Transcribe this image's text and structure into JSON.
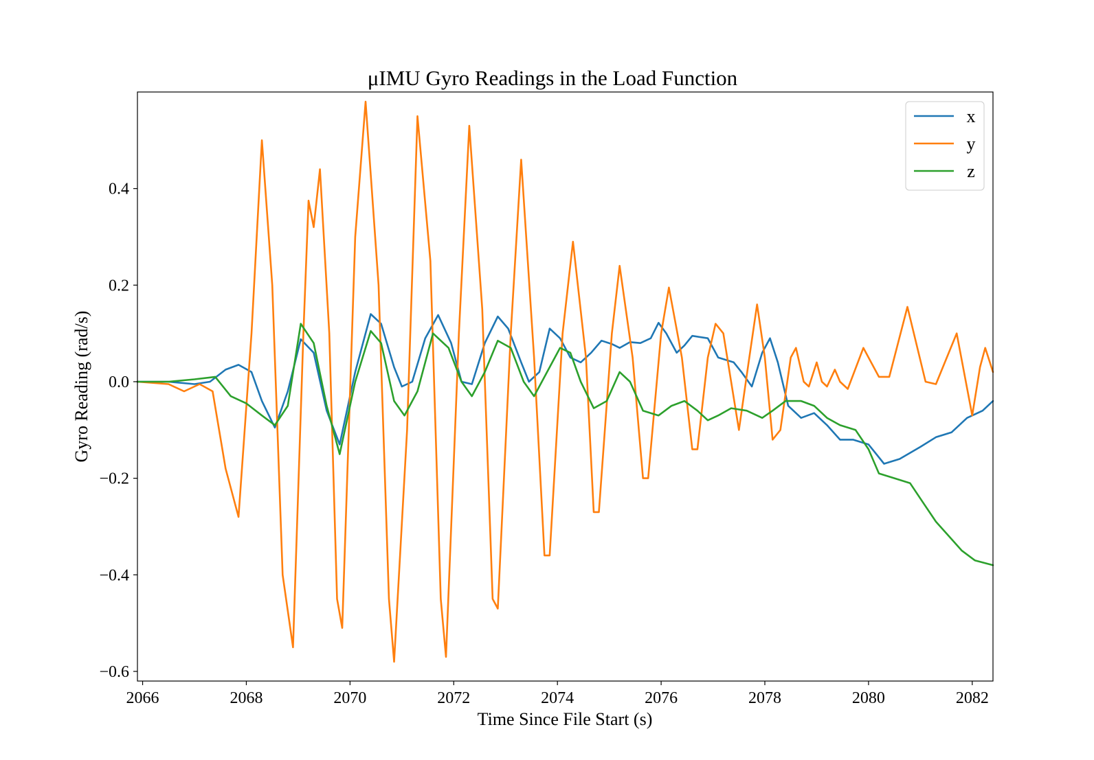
{
  "chart_data": {
    "type": "line",
    "title": "μIMU Gyro Readings in the Load Function",
    "xlabel": "Time Since File Start (s)",
    "ylabel": "Gyro Reading (rad/s)",
    "xlim": [
      2065.9,
      2082.4
    ],
    "ylim": [
      -0.62,
      0.6
    ],
    "xticks": [
      2066,
      2068,
      2070,
      2072,
      2074,
      2076,
      2078,
      2080,
      2082
    ],
    "xtick_labels": [
      "2066",
      "2068",
      "2070",
      "2072",
      "2074",
      "2076",
      "2078",
      "2080",
      "2082"
    ],
    "yticks": [
      -0.6,
      -0.4,
      -0.2,
      0.0,
      0.2,
      0.4
    ],
    "ytick_labels": [
      "−0.6",
      "−0.4",
      "−0.2",
      "0.0",
      "0.2",
      "0.4"
    ],
    "legend_position": "top-right",
    "grid": false,
    "series": [
      {
        "name": "x",
        "color": "#1f77b4",
        "points": [
          [
            2065.9,
            0.0
          ],
          [
            2066.5,
            0.0
          ],
          [
            2067.0,
            -0.005
          ],
          [
            2067.3,
            0.0
          ],
          [
            2067.6,
            0.025
          ],
          [
            2067.85,
            0.035
          ],
          [
            2068.1,
            0.02
          ],
          [
            2068.3,
            -0.04
          ],
          [
            2068.55,
            -0.095
          ],
          [
            2068.8,
            -0.02
          ],
          [
            2069.05,
            0.088
          ],
          [
            2069.3,
            0.06
          ],
          [
            2069.55,
            -0.06
          ],
          [
            2069.8,
            -0.13
          ],
          [
            2070.1,
            0.02
          ],
          [
            2070.4,
            0.14
          ],
          [
            2070.6,
            0.12
          ],
          [
            2070.85,
            0.03
          ],
          [
            2071.0,
            -0.01
          ],
          [
            2071.2,
            0.0
          ],
          [
            2071.45,
            0.09
          ],
          [
            2071.7,
            0.138
          ],
          [
            2071.95,
            0.08
          ],
          [
            2072.15,
            0.0
          ],
          [
            2072.35,
            -0.005
          ],
          [
            2072.6,
            0.08
          ],
          [
            2072.85,
            0.135
          ],
          [
            2073.05,
            0.11
          ],
          [
            2073.3,
            0.04
          ],
          [
            2073.45,
            0.0
          ],
          [
            2073.65,
            0.02
          ],
          [
            2073.85,
            0.11
          ],
          [
            2074.05,
            0.09
          ],
          [
            2074.25,
            0.05
          ],
          [
            2074.45,
            0.04
          ],
          [
            2074.65,
            0.06
          ],
          [
            2074.85,
            0.085
          ],
          [
            2075.05,
            0.078
          ],
          [
            2075.2,
            0.07
          ],
          [
            2075.4,
            0.082
          ],
          [
            2075.6,
            0.08
          ],
          [
            2075.8,
            0.09
          ],
          [
            2075.95,
            0.122
          ],
          [
            2076.1,
            0.1
          ],
          [
            2076.3,
            0.06
          ],
          [
            2076.45,
            0.075
          ],
          [
            2076.6,
            0.095
          ],
          [
            2076.9,
            0.09
          ],
          [
            2077.1,
            0.05
          ],
          [
            2077.4,
            0.04
          ],
          [
            2077.55,
            0.02
          ],
          [
            2077.75,
            -0.01
          ],
          [
            2077.95,
            0.06
          ],
          [
            2078.1,
            0.09
          ],
          [
            2078.25,
            0.04
          ],
          [
            2078.45,
            -0.05
          ],
          [
            2078.7,
            -0.075
          ],
          [
            2078.95,
            -0.065
          ],
          [
            2079.2,
            -0.09
          ],
          [
            2079.45,
            -0.12
          ],
          [
            2079.7,
            -0.12
          ],
          [
            2080.0,
            -0.13
          ],
          [
            2080.3,
            -0.17
          ],
          [
            2080.6,
            -0.16
          ],
          [
            2081.0,
            -0.135
          ],
          [
            2081.3,
            -0.115
          ],
          [
            2081.6,
            -0.105
          ],
          [
            2081.9,
            -0.075
          ],
          [
            2082.2,
            -0.06
          ],
          [
            2082.4,
            -0.04
          ]
        ]
      },
      {
        "name": "y",
        "color": "#ff7f0e",
        "points": [
          [
            2065.9,
            0.0
          ],
          [
            2066.5,
            -0.005
          ],
          [
            2066.8,
            -0.02
          ],
          [
            2067.1,
            -0.005
          ],
          [
            2067.35,
            -0.02
          ],
          [
            2067.6,
            -0.18
          ],
          [
            2067.85,
            -0.28
          ],
          [
            2068.1,
            0.1
          ],
          [
            2068.3,
            0.5
          ],
          [
            2068.5,
            0.2
          ],
          [
            2068.7,
            -0.4
          ],
          [
            2068.9,
            -0.55
          ],
          [
            2069.1,
            0.1
          ],
          [
            2069.2,
            0.375
          ],
          [
            2069.3,
            0.32
          ],
          [
            2069.42,
            0.44
          ],
          [
            2069.6,
            0.1
          ],
          [
            2069.75,
            -0.45
          ],
          [
            2069.85,
            -0.51
          ],
          [
            2070.1,
            0.3
          ],
          [
            2070.3,
            0.58
          ],
          [
            2070.55,
            0.2
          ],
          [
            2070.75,
            -0.45
          ],
          [
            2070.85,
            -0.58
          ],
          [
            2071.1,
            -0.1
          ],
          [
            2071.3,
            0.55
          ],
          [
            2071.55,
            0.25
          ],
          [
            2071.75,
            -0.45
          ],
          [
            2071.85,
            -0.57
          ],
          [
            2072.1,
            0.1
          ],
          [
            2072.3,
            0.53
          ],
          [
            2072.55,
            0.15
          ],
          [
            2072.75,
            -0.45
          ],
          [
            2072.85,
            -0.47
          ],
          [
            2073.1,
            0.1
          ],
          [
            2073.3,
            0.46
          ],
          [
            2073.55,
            0.05
          ],
          [
            2073.75,
            -0.36
          ],
          [
            2073.85,
            -0.36
          ],
          [
            2074.1,
            0.1
          ],
          [
            2074.3,
            0.29
          ],
          [
            2074.55,
            0.05
          ],
          [
            2074.7,
            -0.27
          ],
          [
            2074.8,
            -0.27
          ],
          [
            2075.05,
            0.1
          ],
          [
            2075.2,
            0.24
          ],
          [
            2075.45,
            0.05
          ],
          [
            2075.65,
            -0.2
          ],
          [
            2075.75,
            -0.2
          ],
          [
            2076.0,
            0.1
          ],
          [
            2076.15,
            0.195
          ],
          [
            2076.4,
            0.05
          ],
          [
            2076.6,
            -0.14
          ],
          [
            2076.7,
            -0.14
          ],
          [
            2076.9,
            0.05
          ],
          [
            2077.05,
            0.12
          ],
          [
            2077.2,
            0.1
          ],
          [
            2077.5,
            -0.1
          ],
          [
            2077.7,
            0.05
          ],
          [
            2077.85,
            0.16
          ],
          [
            2078.0,
            0.05
          ],
          [
            2078.15,
            -0.12
          ],
          [
            2078.3,
            -0.1
          ],
          [
            2078.5,
            0.05
          ],
          [
            2078.6,
            0.07
          ],
          [
            2078.75,
            0.0
          ],
          [
            2078.85,
            -0.01
          ],
          [
            2079.0,
            0.04
          ],
          [
            2079.1,
            0.0
          ],
          [
            2079.2,
            -0.01
          ],
          [
            2079.35,
            0.025
          ],
          [
            2079.45,
            0.0
          ],
          [
            2079.6,
            -0.015
          ],
          [
            2079.9,
            0.07
          ],
          [
            2080.2,
            0.01
          ],
          [
            2080.4,
            0.01
          ],
          [
            2080.75,
            0.155
          ],
          [
            2081.1,
            0.0
          ],
          [
            2081.3,
            -0.005
          ],
          [
            2081.7,
            0.1
          ],
          [
            2082.0,
            -0.07
          ],
          [
            2082.15,
            0.03
          ],
          [
            2082.25,
            0.07
          ],
          [
            2082.4,
            0.02
          ]
        ]
      },
      {
        "name": "z",
        "color": "#2ca02c",
        "points": [
          [
            2065.9,
            0.0
          ],
          [
            2066.5,
            0.0
          ],
          [
            2067.0,
            0.005
          ],
          [
            2067.4,
            0.01
          ],
          [
            2067.7,
            -0.03
          ],
          [
            2068.0,
            -0.045
          ],
          [
            2068.3,
            -0.07
          ],
          [
            2068.55,
            -0.09
          ],
          [
            2068.8,
            -0.05
          ],
          [
            2069.05,
            0.12
          ],
          [
            2069.3,
            0.08
          ],
          [
            2069.55,
            -0.05
          ],
          [
            2069.8,
            -0.15
          ],
          [
            2070.1,
            0.0
          ],
          [
            2070.4,
            0.105
          ],
          [
            2070.6,
            0.08
          ],
          [
            2070.85,
            -0.04
          ],
          [
            2071.05,
            -0.07
          ],
          [
            2071.3,
            -0.02
          ],
          [
            2071.6,
            0.1
          ],
          [
            2071.9,
            0.07
          ],
          [
            2072.15,
            0.0
          ],
          [
            2072.35,
            -0.03
          ],
          [
            2072.6,
            0.02
          ],
          [
            2072.85,
            0.085
          ],
          [
            2073.1,
            0.07
          ],
          [
            2073.35,
            0.0
          ],
          [
            2073.55,
            -0.03
          ],
          [
            2073.8,
            0.02
          ],
          [
            2074.05,
            0.07
          ],
          [
            2074.25,
            0.06
          ],
          [
            2074.45,
            0.0
          ],
          [
            2074.7,
            -0.055
          ],
          [
            2074.95,
            -0.04
          ],
          [
            2075.2,
            0.02
          ],
          [
            2075.4,
            0.0
          ],
          [
            2075.65,
            -0.06
          ],
          [
            2075.95,
            -0.07
          ],
          [
            2076.2,
            -0.05
          ],
          [
            2076.45,
            -0.04
          ],
          [
            2076.7,
            -0.06
          ],
          [
            2076.9,
            -0.08
          ],
          [
            2077.1,
            -0.07
          ],
          [
            2077.35,
            -0.055
          ],
          [
            2077.65,
            -0.06
          ],
          [
            2077.95,
            -0.075
          ],
          [
            2078.15,
            -0.06
          ],
          [
            2078.4,
            -0.04
          ],
          [
            2078.7,
            -0.04
          ],
          [
            2078.95,
            -0.05
          ],
          [
            2079.2,
            -0.075
          ],
          [
            2079.45,
            -0.09
          ],
          [
            2079.75,
            -0.1
          ],
          [
            2080.0,
            -0.14
          ],
          [
            2080.2,
            -0.19
          ],
          [
            2080.5,
            -0.2
          ],
          [
            2080.8,
            -0.21
          ],
          [
            2081.05,
            -0.25
          ],
          [
            2081.3,
            -0.29
          ],
          [
            2081.55,
            -0.32
          ],
          [
            2081.8,
            -0.35
          ],
          [
            2082.05,
            -0.37
          ],
          [
            2082.4,
            -0.38
          ]
        ]
      }
    ]
  }
}
